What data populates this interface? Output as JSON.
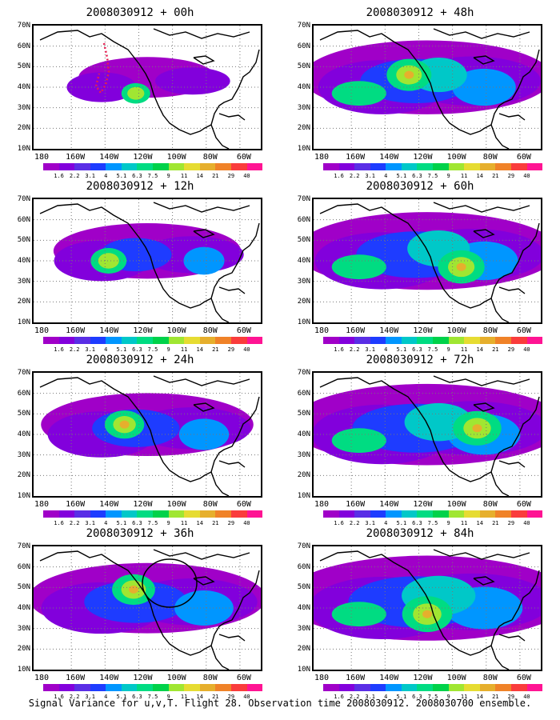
{
  "chart_data": {
    "type": "heatmap",
    "caption": "Signal Variance for u,v,T. Flight 28. Observation time 2008030912. 2008030700 ensemble.",
    "y_ticks": [
      "70N",
      "60N",
      "50N",
      "40N",
      "30N",
      "20N",
      "10N"
    ],
    "x_ticks": [
      "180",
      "160W",
      "140W",
      "120W",
      "100W",
      "80W",
      "60W"
    ],
    "colorbar": {
      "labels": [
        "1.6",
        "2.2",
        "3.1",
        "4",
        "5.1",
        "6.3",
        "7.5",
        "9",
        "11",
        "14",
        "21",
        "29",
        "40"
      ],
      "colors": [
        "#a000c8",
        "#8200dc",
        "#5a2ee6",
        "#1e3cff",
        "#0096ff",
        "#00c8c8",
        "#00dc82",
        "#00d24a",
        "#a0e632",
        "#e6dc32",
        "#e6af2d",
        "#f08228",
        "#fa3c3c",
        "#ff1493"
      ]
    },
    "panels": [
      {
        "title": "2008030912 + 00h",
        "level": 0.55,
        "hot": [
          0.45,
          0.55
        ]
      },
      {
        "title": "2008030912 + 48h",
        "level": 1.0,
        "hot": [
          0.42,
          0.4
        ]
      },
      {
        "title": "2008030912 + 12h",
        "level": 0.75,
        "hot": [
          0.33,
          0.5
        ]
      },
      {
        "title": "2008030912 + 60h",
        "level": 1.05,
        "hot": [
          0.65,
          0.55
        ]
      },
      {
        "title": "2008030912 + 24h",
        "level": 0.85,
        "hot": [
          0.4,
          0.42
        ]
      },
      {
        "title": "2008030912 + 72h",
        "level": 1.1,
        "hot": [
          0.72,
          0.45
        ]
      },
      {
        "title": "2008030912 + 36h",
        "level": 0.95,
        "hot": [
          0.44,
          0.35
        ]
      },
      {
        "title": "2008030912 + 84h",
        "level": 1.15,
        "hot": [
          0.5,
          0.55
        ]
      }
    ]
  }
}
